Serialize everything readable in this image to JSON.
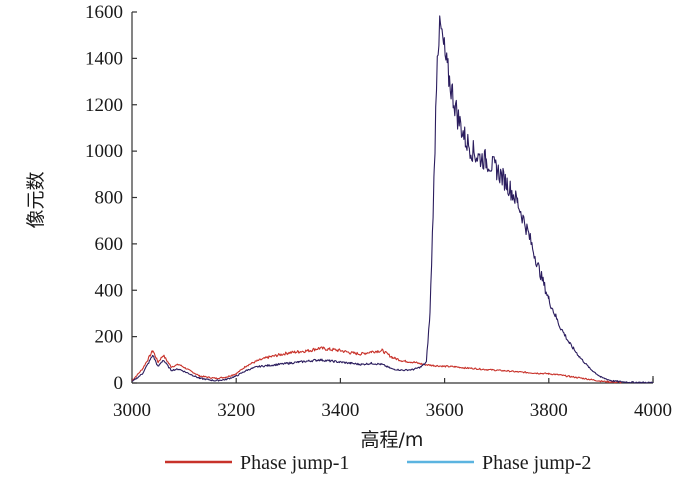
{
  "chart_data": {
    "type": "line",
    "title": "",
    "xlabel": "高程/m",
    "ylabel": "像元数",
    "xlim": [
      3000,
      4000
    ],
    "ylim": [
      0,
      1600
    ],
    "x_ticks": [
      "3000",
      "3200",
      "3400",
      "3600",
      "3800",
      "4000"
    ],
    "y_ticks": [
      "0",
      "200",
      "400",
      "600",
      "800",
      "1000",
      "1200",
      "1400",
      "1600"
    ],
    "grid": false,
    "legend_position": "bottom",
    "series": [
      {
        "name": "Phase jump-1",
        "color": "#c8322a",
        "x": [
          3000,
          3020,
          3040,
          3050,
          3060,
          3075,
          3090,
          3110,
          3130,
          3160,
          3180,
          3200,
          3220,
          3240,
          3260,
          3280,
          3300,
          3320,
          3340,
          3360,
          3380,
          3400,
          3420,
          3440,
          3460,
          3480,
          3500,
          3520,
          3540,
          3560,
          3580,
          3600,
          3620,
          3640,
          3660,
          3680,
          3700,
          3720,
          3740,
          3760,
          3780,
          3800,
          3820,
          3840,
          3860,
          3880,
          3900,
          3920,
          3940
        ],
        "y": [
          10,
          60,
          140,
          90,
          120,
          70,
          80,
          55,
          30,
          20,
          25,
          40,
          75,
          95,
          110,
          120,
          130,
          135,
          140,
          150,
          145,
          140,
          130,
          125,
          135,
          140,
          110,
          95,
          90,
          80,
          75,
          72,
          70,
          65,
          62,
          58,
          55,
          52,
          48,
          45,
          42,
          40,
          35,
          28,
          22,
          15,
          8,
          4,
          2
        ]
      },
      {
        "name": "Phase jump-2",
        "color": "#5bb4e0",
        "x": [],
        "y": []
      },
      {
        "name": "",
        "color": "#2b1d5e",
        "x": [
          3000,
          3020,
          3040,
          3050,
          3060,
          3075,
          3090,
          3110,
          3130,
          3160,
          3180,
          3200,
          3220,
          3240,
          3260,
          3280,
          3300,
          3320,
          3340,
          3360,
          3380,
          3400,
          3420,
          3440,
          3460,
          3480,
          3500,
          3520,
          3540,
          3555,
          3565,
          3572,
          3580,
          3586,
          3592,
          3598,
          3605,
          3615,
          3625,
          3640,
          3660,
          3680,
          3700,
          3720,
          3740,
          3760,
          3780,
          3800,
          3820,
          3840,
          3860,
          3880,
          3900,
          3920,
          3940,
          3960,
          3980,
          4000
        ],
        "y": [
          5,
          40,
          120,
          70,
          100,
          55,
          60,
          40,
          20,
          10,
          15,
          30,
          55,
          70,
          75,
          80,
          85,
          90,
          95,
          100,
          95,
          90,
          85,
          80,
          85,
          80,
          60,
          55,
          58,
          70,
          90,
          300,
          900,
          1450,
          1530,
          1450,
          1350,
          1250,
          1150,
          1050,
          980,
          960,
          920,
          860,
          780,
          650,
          500,
          360,
          250,
          170,
          110,
          60,
          25,
          10,
          5,
          3,
          2,
          2
        ]
      }
    ]
  }
}
